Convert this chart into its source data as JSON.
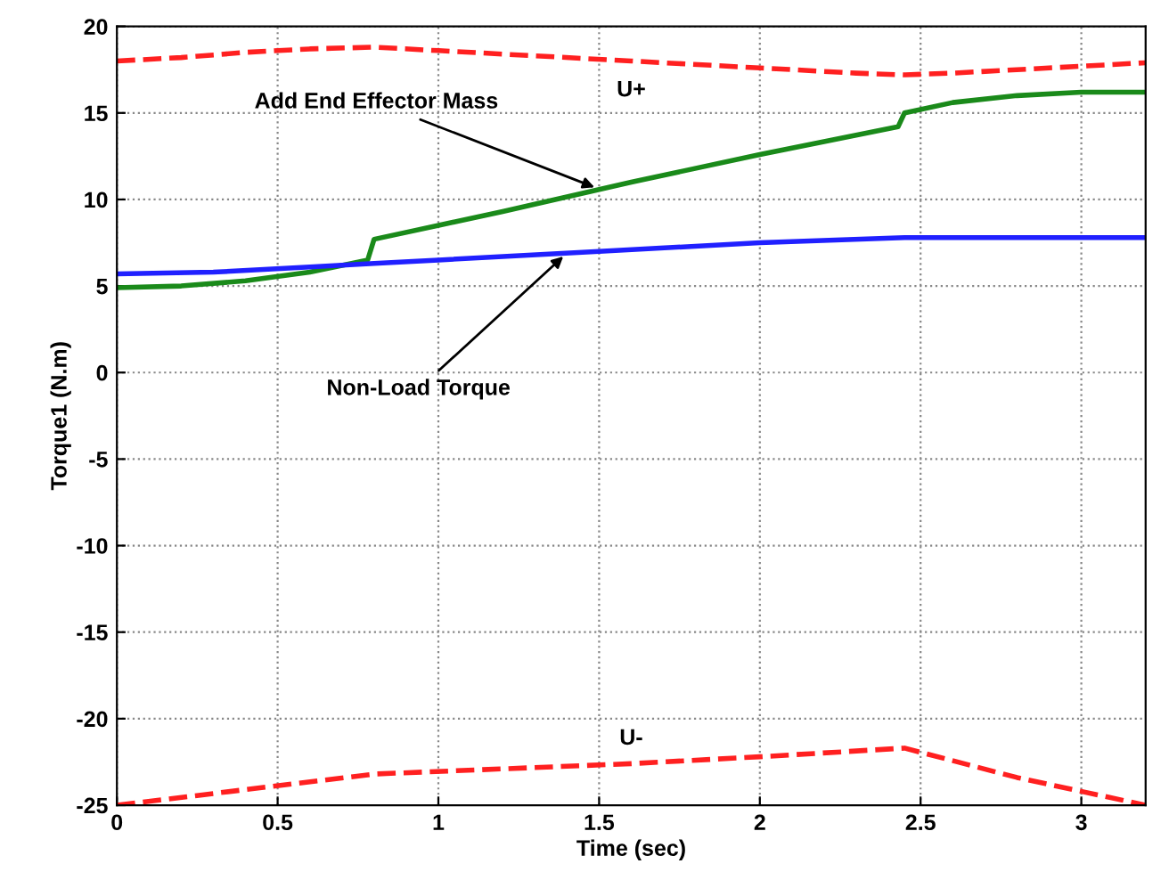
{
  "chart_data": {
    "type": "line",
    "xlabel": "Time (sec)",
    "ylabel": "Torque1 (N.m)",
    "xlim": [
      0,
      3.2
    ],
    "ylim": [
      -25,
      20
    ],
    "xticks": [
      0,
      0.5,
      1,
      1.5,
      2,
      2.5,
      3
    ],
    "yticks": [
      -25,
      -20,
      -15,
      -10,
      -5,
      0,
      5,
      10,
      15,
      20
    ],
    "grid": true,
    "marker": "none",
    "series": [
      {
        "name": "U+",
        "color": "#ff2020",
        "line_style": "dashed",
        "x": [
          0,
          0.2,
          0.4,
          0.6,
          0.8,
          1.0,
          1.3,
          1.6,
          2.0,
          2.3,
          2.45,
          2.6,
          2.9,
          3.2
        ],
        "values": [
          18.0,
          18.2,
          18.5,
          18.7,
          18.8,
          18.6,
          18.3,
          18.0,
          17.6,
          17.3,
          17.2,
          17.3,
          17.6,
          17.9
        ]
      },
      {
        "color": "#1a8a1a",
        "line_style": "solid",
        "x": [
          0,
          0.2,
          0.4,
          0.6,
          0.78,
          0.8,
          1.2,
          1.6,
          2.0,
          2.43,
          2.45,
          2.6,
          2.8,
          3.0,
          3.2
        ],
        "values": [
          4.9,
          5.0,
          5.3,
          5.8,
          6.5,
          7.7,
          9.3,
          11.0,
          12.6,
          14.2,
          15.0,
          15.6,
          16.0,
          16.2,
          16.2
        ]
      },
      {
        "color": "#2020ff",
        "line_style": "solid",
        "x": [
          0,
          0.3,
          0.6,
          0.8,
          1.0,
          1.5,
          2.0,
          2.45,
          2.8,
          3.2
        ],
        "values": [
          5.7,
          5.8,
          6.1,
          6.3,
          6.5,
          7.0,
          7.5,
          7.8,
          7.8,
          7.8
        ]
      },
      {
        "name": "U-",
        "color": "#ff2020",
        "line_style": "dashed",
        "x": [
          0,
          0.4,
          0.8,
          1.2,
          1.6,
          2.0,
          2.45,
          2.8,
          3.2
        ],
        "values": [
          -25.0,
          -24.1,
          -23.2,
          -22.9,
          -22.6,
          -22.2,
          -21.7,
          -23.4,
          -25.0
        ]
      }
    ],
    "annotations": [
      {
        "text": "Add End Effector Mass",
        "x": 1.5,
        "y": 10.6
      },
      {
        "text": "Non-Load Torque",
        "x": 1.4,
        "y": 6.9
      }
    ]
  }
}
